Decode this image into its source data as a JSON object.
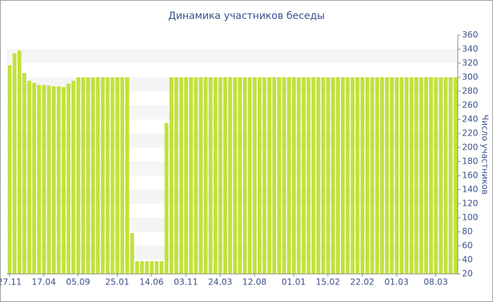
{
  "chart_data": {
    "type": "bar",
    "title": "Динамика участников беседы",
    "y_label": "Число участников",
    "categories": [
      "27.11",
      null,
      null,
      null,
      null,
      null,
      null,
      "17.04",
      null,
      null,
      null,
      null,
      null,
      null,
      "05.09",
      null,
      null,
      null,
      null,
      null,
      null,
      null,
      "25.01",
      null,
      null,
      null,
      null,
      null,
      null,
      "14.06",
      null,
      null,
      null,
      null,
      null,
      null,
      "03.11",
      null,
      null,
      null,
      null,
      null,
      null,
      "24.03",
      null,
      null,
      null,
      null,
      null,
      null,
      "12.08",
      null,
      null,
      null,
      null,
      null,
      null,
      null,
      "01.01",
      null,
      null,
      null,
      null,
      null,
      null,
      "15.02",
      null,
      null,
      null,
      null,
      null,
      null,
      "22.02",
      null,
      null,
      null,
      null,
      null,
      null,
      "01.03",
      null,
      null,
      null,
      null,
      null,
      null,
      null,
      "08.03",
      null,
      null,
      null,
      null
    ],
    "values": [
      317,
      334,
      338,
      306,
      295,
      292,
      289,
      289,
      288,
      287,
      287,
      286,
      291,
      295,
      300,
      300,
      300,
      300,
      300,
      300,
      300,
      300,
      300,
      300,
      300,
      78,
      38,
      38,
      38,
      38,
      38,
      38,
      235,
      300,
      300,
      300,
      300,
      300,
      300,
      300,
      300,
      300,
      300,
      300,
      300,
      300,
      300,
      300,
      300,
      300,
      300,
      300,
      300,
      300,
      300,
      300,
      300,
      300,
      300,
      300,
      300,
      300,
      300,
      300,
      300,
      300,
      300,
      300,
      300,
      300,
      300,
      300,
      300,
      300,
      300,
      300,
      300,
      300,
      300,
      300,
      300,
      300,
      300,
      300,
      300,
      300,
      300,
      300,
      300,
      300,
      300,
      300
    ],
    "color": "#c1e23c",
    "ylim": [
      20,
      360
    ],
    "yticks": [
      20,
      40,
      60,
      80,
      100,
      120,
      140,
      160,
      180,
      200,
      220,
      240,
      260,
      280,
      300,
      320,
      340,
      360
    ],
    "grid": true
  }
}
